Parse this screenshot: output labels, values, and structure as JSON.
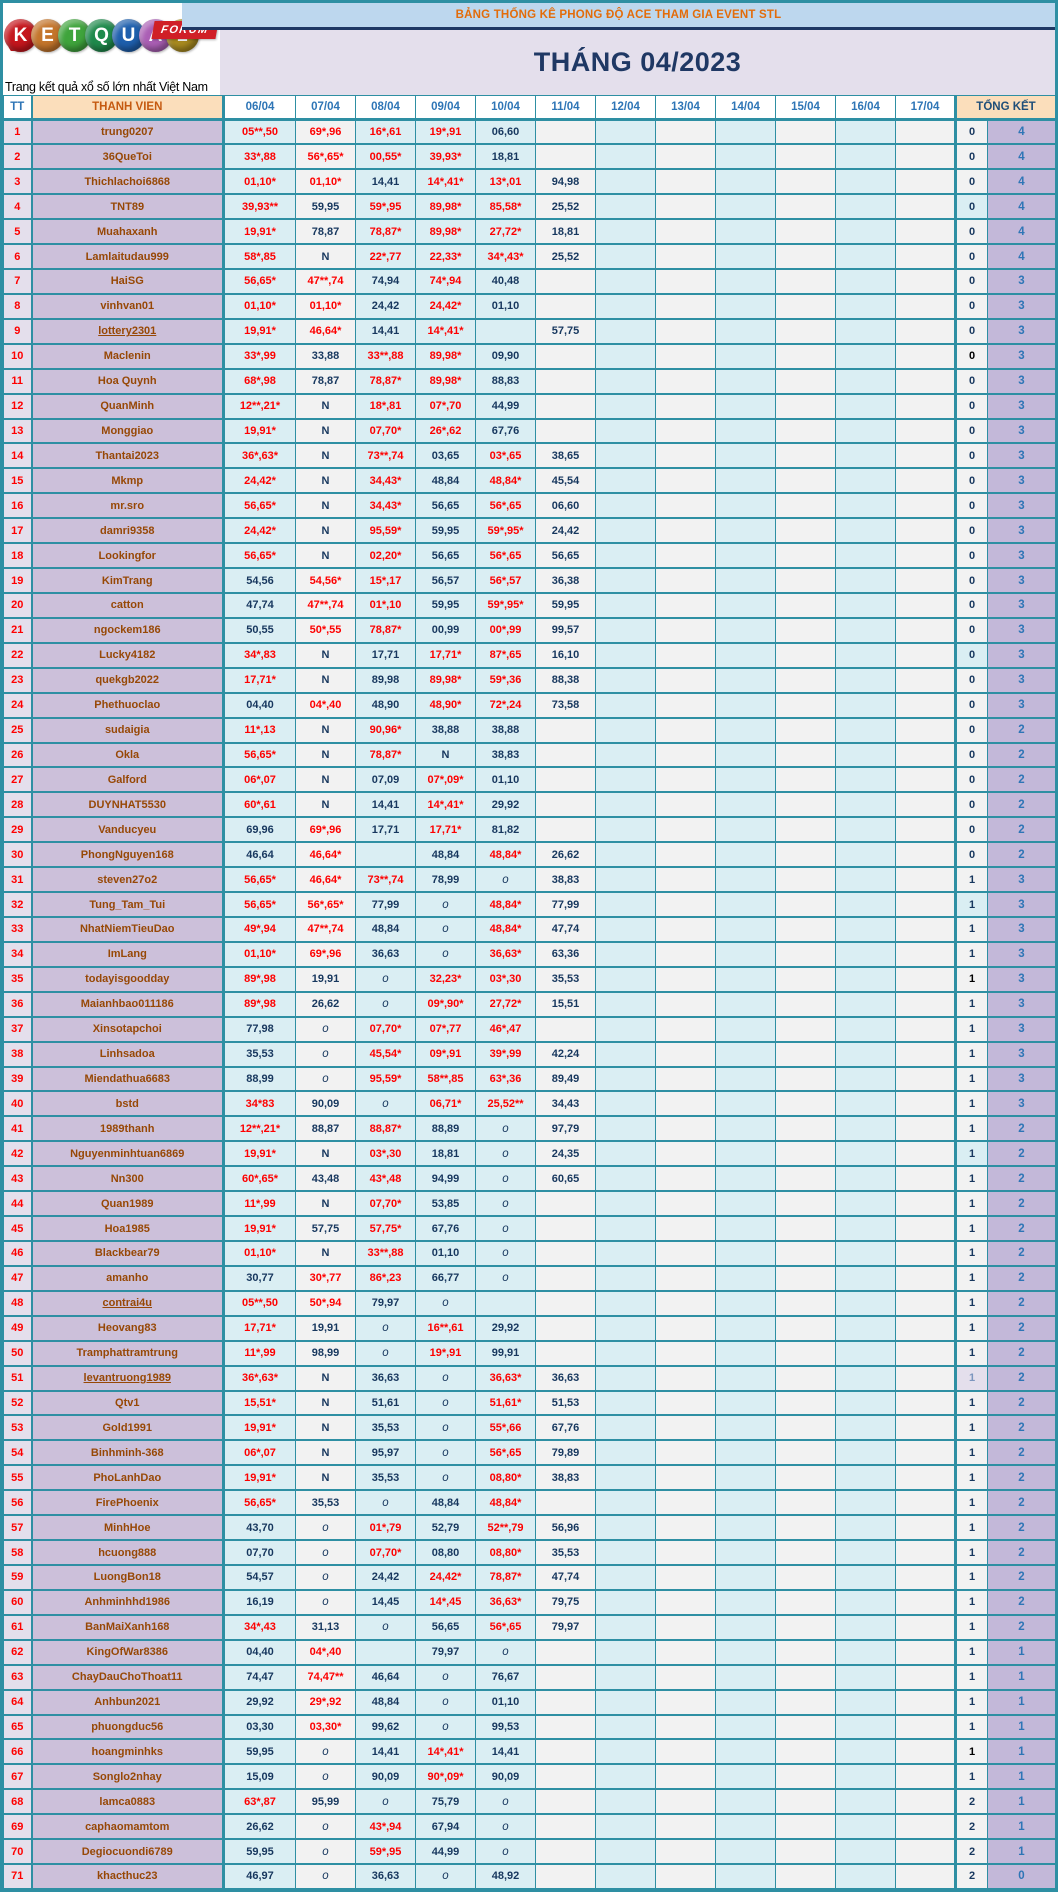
{
  "logo": {
    "paren": "(",
    "letters": [
      {
        "ch": "K",
        "color": "#C5161D"
      },
      {
        "ch": "E",
        "color": "#C4752B"
      },
      {
        "ch": "T",
        "color": "#3FA43C"
      },
      {
        "ch": "Q",
        "color": "#1F8A4C"
      },
      {
        "ch": "U",
        "color": "#1E5FAD"
      },
      {
        "ch": "A",
        "color": "#AB5FB5"
      },
      {
        "ch": "2",
        "color": "#A98B1F"
      }
    ],
    "forum_label": "FORUM",
    "tagline": "Trang kết quả xổ số lớn nhất Việt Nam"
  },
  "header": {
    "title": "BẢNG THỐNG KÊ PHONG ĐỘ ACE THAM GIA EVENT STL",
    "month": "THÁNG 04/2023"
  },
  "columns": {
    "tt": "TT",
    "member": "THANH VIEN",
    "dates": [
      "06/04",
      "07/04",
      "08/04",
      "09/04",
      "10/04",
      "11/04",
      "12/04",
      "13/04",
      "14/04",
      "15/04",
      "16/04",
      "17/04"
    ],
    "total": "TỔNG KẾT"
  },
  "colors": {
    "border_teal": "#2E8FA3",
    "banner_bg": "#BDD7EE",
    "banner_text": "#E36C0A",
    "month_bg": "#E4DFEC",
    "month_text": "#1F3864",
    "name_bg": "#CCC0DA",
    "name_text": "#974806",
    "value_red": "#FE0000",
    "value_navy": "#17375E",
    "total_bg": "#C3B8D9",
    "total_text": "#2E75B6",
    "header_peach": "#FBDEBB"
  },
  "table": {
    "rows": [
      {
        "n": "1",
        "m": "trung0207",
        "f": "",
        "s": [
          "05**,50",
          "69*,96",
          "16*,61",
          "19*,91",
          "06,60",
          ""
        ],
        "a": "0",
        "b": "4"
      },
      {
        "n": "2",
        "m": "36QueToi",
        "f": "",
        "s": [
          "33*,88",
          "56*,65*",
          "00,55*",
          "39,93*",
          "18,81",
          ""
        ],
        "a": "0",
        "b": "4"
      },
      {
        "n": "3",
        "m": "Thichlachoi6868",
        "f": "",
        "s": [
          "01,10*",
          "01,10*",
          "14,41",
          "14*,41*",
          "13*,01",
          "94,98"
        ],
        "a": "0",
        "b": "4"
      },
      {
        "n": "4",
        "m": "TNT89",
        "f": "hc",
        "s": [
          "39,93**",
          "59,95",
          "59*,95",
          "89,98*",
          "85,58*",
          "25,52"
        ],
        "a": "0",
        "b": "4"
      },
      {
        "n": "5",
        "m": "Muahaxanh",
        "f": "",
        "s": [
          "19,91*",
          "78,87",
          "78,87*",
          "89,98*",
          "27,72*",
          "18,81"
        ],
        "a": "0",
        "b": "4"
      },
      {
        "n": "6",
        "m": "Lamlaitudau999",
        "f": "",
        "s": [
          "58*,85",
          "N",
          "22*,77",
          "22,33*",
          "34*,43*",
          "25,52"
        ],
        "a": "0",
        "b": "4"
      },
      {
        "n": "7",
        "m": "HaiSG",
        "f": "",
        "s": [
          "56,65*",
          "47**,74",
          "74,94",
          "74*,94",
          "40,48",
          ""
        ],
        "a": "0",
        "b": "3"
      },
      {
        "n": "8",
        "m": "vinhvan01",
        "f": "",
        "s": [
          "01,10*",
          "01,10*",
          "24,42",
          "24,42*",
          "01,10",
          ""
        ],
        "a": "0",
        "b": "3"
      },
      {
        "n": "9",
        "m": "lottery2301",
        "f": "u",
        "s": [
          "19,91*",
          "46,64*",
          "14,41",
          "14*,41*",
          "",
          "57,75"
        ],
        "a": "0",
        "b": "3"
      },
      {
        "n": "10",
        "m": "Maclenin",
        "f": "b",
        "s": [
          "33*,99",
          "33,88",
          "33**,88",
          "89,98*",
          "09,90",
          ""
        ],
        "a": "0",
        "b": "3"
      },
      {
        "n": "11",
        "m": "Hoa Quynh",
        "f": "",
        "s": [
          "68*,98",
          "78,87",
          "78,87*",
          "89,98*",
          "88,83",
          ""
        ],
        "a": "0",
        "b": "3"
      },
      {
        "n": "12",
        "m": "QuanMinh",
        "f": "",
        "s": [
          "12**,21*",
          "N",
          "18*,81",
          "07*,70",
          "44,99",
          ""
        ],
        "a": "0",
        "b": "3"
      },
      {
        "n": "13",
        "m": "Monggiao",
        "f": "",
        "s": [
          "19,91*",
          "N",
          "07,70*",
          "26*,62",
          "67,76",
          ""
        ],
        "a": "0",
        "b": "3"
      },
      {
        "n": "14",
        "m": "Thantai2023",
        "f": "",
        "s": [
          "36*,63*",
          "N",
          "73**,74",
          "03,65",
          "03*,65",
          "38,65"
        ],
        "a": "0",
        "b": "3"
      },
      {
        "n": "15",
        "m": "Mkmp",
        "f": "",
        "s": [
          "24,42*",
          "N",
          "34,43*",
          "48,84",
          "48,84*",
          "45,54"
        ],
        "a": "0",
        "b": "3"
      },
      {
        "n": "16",
        "m": "mr.sro",
        "f": "",
        "s": [
          "56,65*",
          "N",
          "34,43*",
          "56,65",
          "56*,65",
          "06,60"
        ],
        "a": "0",
        "b": "3"
      },
      {
        "n": "17",
        "m": "damri9358",
        "f": "",
        "s": [
          "24,42*",
          "N",
          "95,59*",
          "59,95",
          "59*,95*",
          "24,42"
        ],
        "a": "0",
        "b": "3"
      },
      {
        "n": "18",
        "m": "Lookingfor",
        "f": "",
        "s": [
          "56,65*",
          "N",
          "02,20*",
          "56,65",
          "56*,65",
          "56,65"
        ],
        "a": "0",
        "b": "3"
      },
      {
        "n": "19",
        "m": "KimTrang",
        "f": "",
        "s": [
          "54,56",
          "54,56*",
          "15*,17",
          "56,57",
          "56*,57",
          "36,38"
        ],
        "a": "0",
        "b": "3"
      },
      {
        "n": "20",
        "m": "catton",
        "f": "",
        "s": [
          "47,74",
          "47**,74",
          "01*,10",
          "59,95",
          "59*,95*",
          "59,95"
        ],
        "a": "0",
        "b": "3"
      },
      {
        "n": "21",
        "m": "ngockem186",
        "f": "",
        "s": [
          "50,55",
          "50*,55",
          "78,87*",
          "00,99",
          "00*,99",
          "99,57"
        ],
        "a": "0",
        "b": "3"
      },
      {
        "n": "22",
        "m": "Lucky4182",
        "f": "hc",
        "s": [
          "34*,83",
          "N",
          "17,71",
          "17,71*",
          "87*,65",
          "16,10"
        ],
        "a": "0",
        "b": "3"
      },
      {
        "n": "23",
        "m": "quekgb2022",
        "f": "",
        "s": [
          "17,71*",
          "N",
          "89,98",
          "89,98*",
          "59*,36",
          "88,38"
        ],
        "a": "0",
        "b": "3"
      },
      {
        "n": "24",
        "m": "Phethuoclao",
        "f": "",
        "s": [
          "04,40",
          "04*,40",
          "48,90",
          "48,90*",
          "72*,24",
          "73,58"
        ],
        "a": "0",
        "b": "3"
      },
      {
        "n": "25",
        "m": "sudaigia",
        "f": "",
        "s": [
          "11*,13",
          "N",
          "90,96*",
          "38,88",
          "38,88",
          ""
        ],
        "a": "0",
        "b": "2"
      },
      {
        "n": "26",
        "m": "Okla",
        "f": "",
        "s": [
          "56,65*",
          "N",
          "78,87*",
          "N",
          "38,83",
          ""
        ],
        "a": "0",
        "b": "2"
      },
      {
        "n": "27",
        "m": "Galford",
        "f": "",
        "s": [
          "06*,07",
          "N",
          "07,09",
          "07*,09*",
          "01,10",
          ""
        ],
        "a": "0",
        "b": "2"
      },
      {
        "n": "28",
        "m": "DUYNHAT5530",
        "f": "",
        "s": [
          "60*,61",
          "N",
          "14,41",
          "14*,41*",
          "29,92",
          ""
        ],
        "a": "0",
        "b": "2"
      },
      {
        "n": "29",
        "m": "Vanducyeu",
        "f": "",
        "s": [
          "69,96",
          "69*,96",
          "17,71",
          "17,71*",
          "81,82",
          ""
        ],
        "a": "0",
        "b": "2"
      },
      {
        "n": "30",
        "m": "PhongNguyen168",
        "f": "",
        "s": [
          "46,64",
          "46,64*",
          "",
          "48,84",
          "48,84*",
          "26,62"
        ],
        "a": "0",
        "b": "2"
      },
      {
        "n": "31",
        "m": "steven27o2",
        "f": "",
        "s": [
          "56,65*",
          "46,64*",
          "73**,74",
          "78,99",
          "o",
          "38,83"
        ],
        "a": "1",
        "b": "3"
      },
      {
        "n": "32",
        "m": "Tung_Tam_Tui",
        "f": "hc",
        "s": [
          "56,65*",
          "56*,65*",
          "77,99",
          "o",
          "48,84*",
          "77,99"
        ],
        "a": "1",
        "b": "3"
      },
      {
        "n": "33",
        "m": "NhatNiemTieuDao",
        "f": "",
        "s": [
          "49*,94",
          "47**,74",
          "48,84",
          "o",
          "48,84*",
          "47,74"
        ],
        "a": "1",
        "b": "3"
      },
      {
        "n": "34",
        "m": "ImLang",
        "f": "",
        "s": [
          "01,10*",
          "69*,96",
          "36,63",
          "o",
          "36,63*",
          "63,36"
        ],
        "a": "1",
        "b": "3"
      },
      {
        "n": "35",
        "m": "todayisgoodday",
        "f": "b",
        "s": [
          "89*,98",
          "19,91",
          "o",
          "32,23*",
          "03*,30",
          "35,53"
        ],
        "a": "1",
        "b": "3"
      },
      {
        "n": "36",
        "m": "Maianhbao011186",
        "f": "",
        "s": [
          "89*,98",
          "26,62",
          "o",
          "09*,90*",
          "27,72*",
          "15,51"
        ],
        "a": "1",
        "b": "3"
      },
      {
        "n": "37",
        "m": "Xinsotapchoi",
        "f": "",
        "s": [
          "77,98",
          "o",
          "07,70*",
          "07*,77",
          "46*,47",
          ""
        ],
        "a": "1",
        "b": "3"
      },
      {
        "n": "38",
        "m": "Linhsadoa",
        "f": "",
        "s": [
          "35,53",
          "o",
          "45,54*",
          "09*,91",
          "39*,99",
          "42,24"
        ],
        "a": "1",
        "b": "3"
      },
      {
        "n": "39",
        "m": "Miendathua6683",
        "f": "",
        "s": [
          "88,99",
          "o",
          "95,59*",
          "58**,85",
          "63*,36",
          "89,49"
        ],
        "a": "1",
        "b": "3"
      },
      {
        "n": "40",
        "m": "bstd",
        "f": "",
        "s": [
          "34*83",
          "90,09",
          "o",
          "06,71*",
          "25,52**",
          "34,43"
        ],
        "a": "1",
        "b": "3"
      },
      {
        "n": "41",
        "m": "1989thanh",
        "f": "",
        "s": [
          "12**,21*",
          "88,87",
          "88,87*",
          "88,89",
          "o",
          "97,79"
        ],
        "a": "1",
        "b": "2"
      },
      {
        "n": "42",
        "m": "Nguyenminhtuan6869",
        "f": "hc",
        "s": [
          "19,91*",
          "N",
          "03*,30",
          "18,81",
          "o",
          "24,35"
        ],
        "a": "1",
        "b": "2"
      },
      {
        "n": "43",
        "m": "Nn300",
        "f": "",
        "s": [
          "60*,65*",
          "43,48",
          "43*,48",
          "94,99",
          "o",
          "60,65"
        ],
        "a": "1",
        "b": "2"
      },
      {
        "n": "44",
        "m": "Quan1989",
        "f": "",
        "s": [
          "11*,99",
          "N",
          "07,70*",
          "53,85",
          "o",
          ""
        ],
        "a": "1",
        "b": "2"
      },
      {
        "n": "45",
        "m": "Hoa1985",
        "f": "",
        "s": [
          "19,91*",
          "57,75",
          "57,75*",
          "67,76",
          "o",
          ""
        ],
        "a": "1",
        "b": "2"
      },
      {
        "n": "46",
        "m": "Blackbear79",
        "f": "",
        "s": [
          "01,10*",
          "N",
          "33**,88",
          "01,10",
          "o",
          ""
        ],
        "a": "1",
        "b": "2"
      },
      {
        "n": "47",
        "m": "amanho",
        "f": "",
        "s": [
          "30,77",
          "30*,77",
          "86*,23",
          "66,77",
          "o",
          ""
        ],
        "a": "1",
        "b": "2"
      },
      {
        "n": "48",
        "m": "contrai4u",
        "f": "u",
        "s": [
          "05**,50",
          "50*,94",
          "79,97",
          "o",
          "",
          ""
        ],
        "a": "1",
        "b": "2"
      },
      {
        "n": "49",
        "m": "Heovang83",
        "f": "",
        "s": [
          "17,71*",
          "19,91",
          "o",
          "16**,61",
          "29,92",
          ""
        ],
        "a": "1",
        "b": "2"
      },
      {
        "n": "50",
        "m": "Tramphattramtrung",
        "f": "",
        "s": [
          "11*,99",
          "98,99",
          "o",
          "19*,91",
          "99,91",
          ""
        ],
        "a": "1",
        "b": "2"
      },
      {
        "n": "51",
        "m": "levantruong1989",
        "f": "u hm",
        "s": [
          "36*,63*",
          "N",
          "36,63",
          "o",
          "36,63*",
          "36,63"
        ],
        "a": "1",
        "b": "2"
      },
      {
        "n": "52",
        "m": "Qtv1",
        "f": "",
        "s": [
          "15,51*",
          "N",
          "51,61",
          "o",
          "51,61*",
          "51,53"
        ],
        "a": "1",
        "b": "2"
      },
      {
        "n": "53",
        "m": "Gold1991",
        "f": "",
        "s": [
          "19,91*",
          "N",
          "35,53",
          "o",
          "55*,66",
          "67,76"
        ],
        "a": "1",
        "b": "2"
      },
      {
        "n": "54",
        "m": "Binhminh-368",
        "f": "",
        "s": [
          "06*,07",
          "N",
          "95,97",
          "o",
          "56*,65",
          "79,89"
        ],
        "a": "1",
        "b": "2"
      },
      {
        "n": "55",
        "m": "PhoLanhDao",
        "f": "",
        "s": [
          "19,91*",
          "N",
          "35,53",
          "o",
          "08,80*",
          "38,83"
        ],
        "a": "1",
        "b": "2"
      },
      {
        "n": "56",
        "m": "FirePhoenix",
        "f": "",
        "s": [
          "56,65*",
          "35,53",
          "o",
          "48,84",
          "48,84*",
          ""
        ],
        "a": "1",
        "b": "2"
      },
      {
        "n": "57",
        "m": "MinhHoe",
        "f": "",
        "s": [
          "43,70",
          "o",
          "01*,79",
          "52,79",
          "52**,79",
          "56,96"
        ],
        "a": "1",
        "b": "2"
      },
      {
        "n": "58",
        "m": "hcuong888",
        "f": "",
        "s": [
          "07,70",
          "o",
          "07,70*",
          "08,80",
          "08,80*",
          "35,53"
        ],
        "a": "1",
        "b": "2"
      },
      {
        "n": "59",
        "m": "LuongBon18",
        "f": "",
        "s": [
          "54,57",
          "o",
          "24,42",
          "24,42*",
          "78,87*",
          "47,74"
        ],
        "a": "1",
        "b": "2"
      },
      {
        "n": "60",
        "m": "Anhminhhd1986",
        "f": "",
        "s": [
          "16,19",
          "o",
          "14,45",
          "14*,45",
          "36,63*",
          "79,75"
        ],
        "a": "1",
        "b": "2"
      },
      {
        "n": "61",
        "m": "BanMaiXanh168",
        "f": "",
        "s": [
          "34*,43",
          "31,13",
          "o",
          "56,65",
          "56*,65",
          "79,97"
        ],
        "a": "1",
        "b": "2"
      },
      {
        "n": "62",
        "m": "KingOfWar8386",
        "f": "",
        "s": [
          "04,40",
          "04*,40",
          "",
          "79,97",
          "o",
          ""
        ],
        "a": "1",
        "b": "1"
      },
      {
        "n": "63",
        "m": "ChayDauChoThoat11",
        "f": "",
        "s": [
          "74,47",
          "74,47**",
          "46,64",
          "o",
          "76,67",
          ""
        ],
        "a": "1",
        "b": "1"
      },
      {
        "n": "64",
        "m": "Anhbun2021",
        "f": "",
        "s": [
          "29,92",
          "29*,92",
          "48,84",
          "o",
          "01,10",
          ""
        ],
        "a": "1",
        "b": "1"
      },
      {
        "n": "65",
        "m": "phuongduc56",
        "f": "",
        "s": [
          "03,30",
          "03,30*",
          "99,62",
          "o",
          "99,53",
          ""
        ],
        "a": "1",
        "b": "1"
      },
      {
        "n": "66",
        "m": "hoangminhks",
        "f": "b",
        "s": [
          "59,95",
          "o",
          "14,41",
          "14*,41*",
          "14,41",
          ""
        ],
        "a": "1",
        "b": "1"
      },
      {
        "n": "67",
        "m": "Songlo2nhay",
        "f": "",
        "s": [
          "15,09",
          "o",
          "90,09",
          "90*,09*",
          "90,09",
          ""
        ],
        "a": "1",
        "b": "1"
      },
      {
        "n": "68",
        "m": "lamca0883",
        "f": "",
        "s": [
          "63*,87",
          "95,99",
          "o",
          "75,79",
          "o",
          ""
        ],
        "a": "2",
        "b": "1"
      },
      {
        "n": "69",
        "m": "caphaomamtom",
        "f": "",
        "s": [
          "26,62",
          "o",
          "43*,94",
          "67,94",
          "o",
          ""
        ],
        "a": "2",
        "b": "1"
      },
      {
        "n": "70",
        "m": "Degiocuondi6789",
        "f": "",
        "s": [
          "59,95",
          "o",
          "59*,95",
          "44,99",
          "o",
          ""
        ],
        "a": "2",
        "b": "1"
      },
      {
        "n": "71",
        "m": "khacthuc23",
        "f": "",
        "s": [
          "46,97",
          "o",
          "36,63",
          "o",
          "48,92",
          ""
        ],
        "a": "2",
        "b": "0"
      }
    ]
  }
}
